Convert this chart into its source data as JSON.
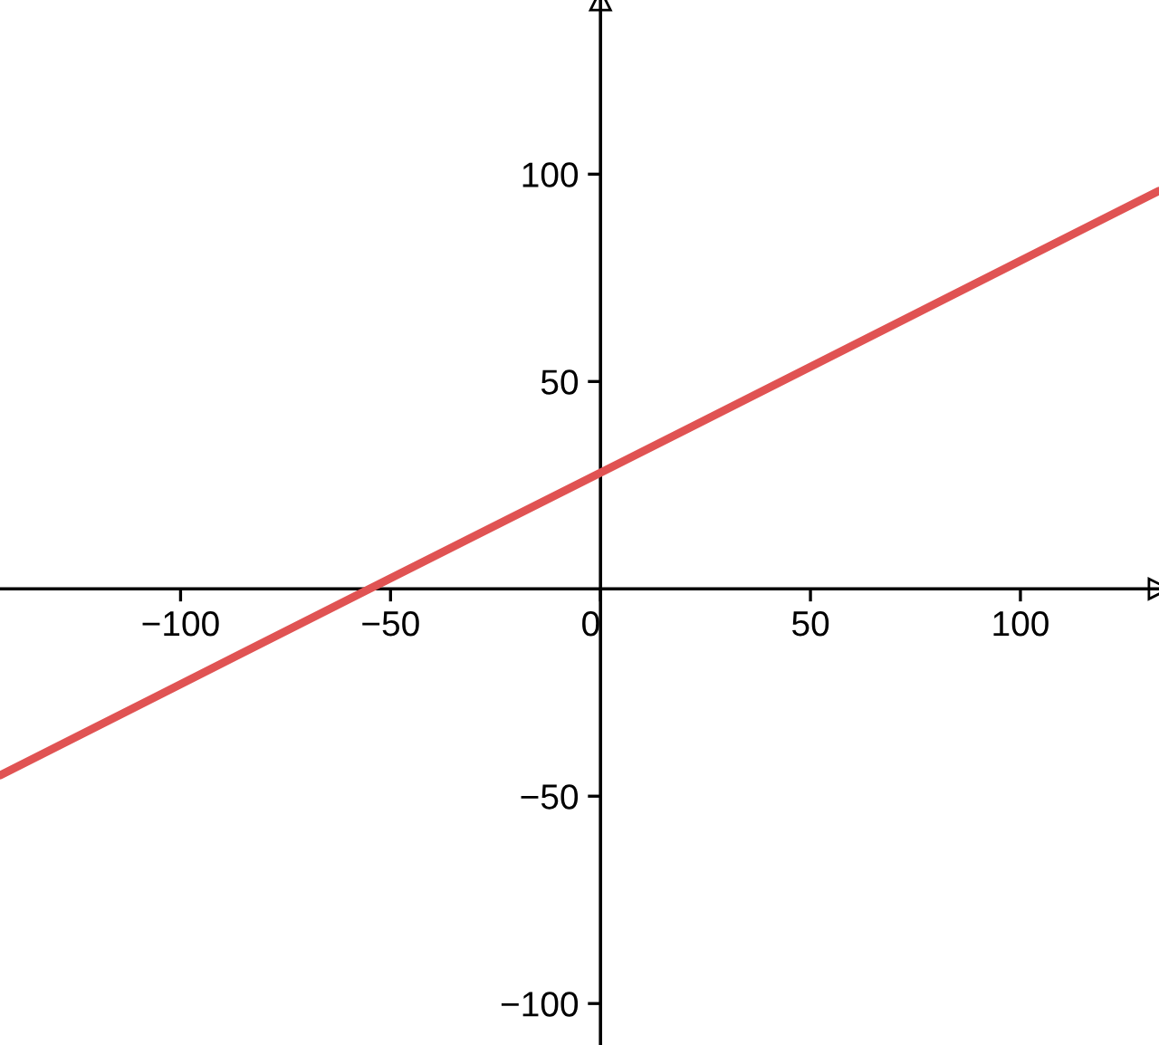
{
  "chart_data": {
    "type": "line",
    "series": [
      {
        "color": "#e05353",
        "x": [
          -143,
          -55,
          0,
          133
        ],
        "values": [
          -45,
          0,
          28,
          96
        ]
      }
    ],
    "xlim": [
      -143,
      133
    ],
    "ylim": [
      -110,
      142
    ],
    "xticks": [
      -100,
      -50,
      0,
      50,
      100
    ],
    "yticks": [
      -100,
      -50,
      50,
      100
    ],
    "grid": false,
    "marker": "none",
    "line_style": "solid"
  }
}
